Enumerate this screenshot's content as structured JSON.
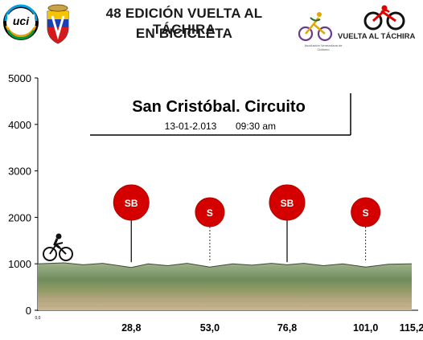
{
  "header": {
    "title_line1": "48 EDICIÓN VUELTA AL TÁCHIRA",
    "title_line2": "EN BICICLETA",
    "logo_left_text": "uci",
    "sponsor_text": "VUELTA AL TÁCHIRA",
    "association_text": "Asociación Venezolana de Ciclismo"
  },
  "stage": {
    "title": "San Cristóbal. Circuito",
    "date": "13-01-2.013",
    "time": "09:30 am"
  },
  "colors": {
    "sprint_marker": "#d40000",
    "sky": "#ffffff",
    "hills": "#6f8c5e",
    "field": "#b1a47e"
  },
  "chart_data": {
    "type": "area",
    "title": "",
    "xlabel": "",
    "ylabel": "",
    "ylim": [
      0,
      5000
    ],
    "y_ticks": [
      0,
      1000,
      2000,
      3000,
      4000,
      5000
    ],
    "x_tick_labels": [
      "28,8",
      "53,0",
      "76,8",
      "101,0",
      "115,2"
    ],
    "x_start_label": "0,0",
    "x_range": [
      0,
      115.2
    ],
    "elevation_profile": {
      "x": [
        0,
        8,
        14,
        20,
        28.8,
        34,
        40,
        46,
        53,
        60,
        66,
        72,
        76.8,
        82,
        88,
        94,
        101,
        108,
        115.2
      ],
      "y": [
        1000,
        1020,
        980,
        1010,
        920,
        1000,
        960,
        1010,
        930,
        1000,
        970,
        1010,
        980,
        1010,
        960,
        1000,
        930,
        990,
        1000
      ]
    },
    "sprints": [
      {
        "km": 28.8,
        "label": "SB",
        "size": "large"
      },
      {
        "km": 53.0,
        "label": "S",
        "size": "small"
      },
      {
        "km": 76.8,
        "label": "SB",
        "size": "large"
      },
      {
        "km": 101.0,
        "label": "S",
        "size": "small"
      }
    ],
    "grid": false,
    "legend": "none"
  }
}
